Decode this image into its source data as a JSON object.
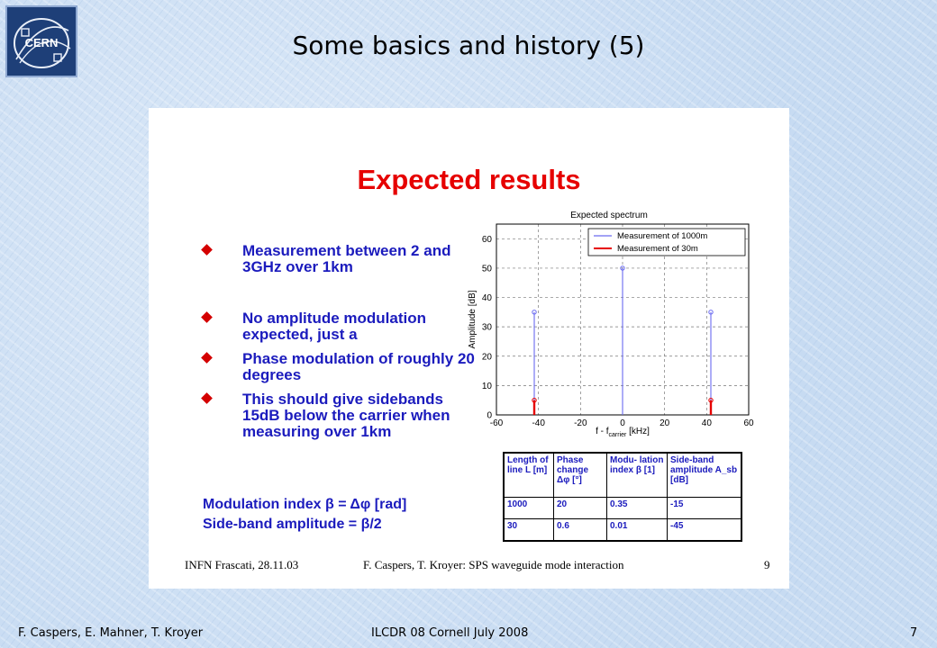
{
  "slide_title": "Some basics and history (5)",
  "logo_text": "CERN",
  "panel": {
    "heading": "Expected results",
    "bullets": [
      "Measurement between 2 and 3GHz over 1km",
      "No amplitude modulation expected, just a",
      "Phase modulation of roughly 20 degrees",
      "This should give sidebands 15dB below the carrier when measuring over 1km"
    ],
    "formula_modulation": "Modulation index β = Δφ [rad]",
    "formula_sideband": "Side-band amplitude = β/2",
    "footer_left": "INFN Frascati, 28.11.03",
    "footer_center": "F. Caspers, T. Kroyer: SPS waveguide mode interaction",
    "footer_page": "9"
  },
  "chart_data": {
    "type": "stem",
    "title": "Expected spectrum",
    "xlabel": "f - f",
    "xlabel_sub": "carrier",
    "xlabel_unit": " [kHz]",
    "ylabel": "Amplitude [dB]",
    "xlim": [
      -60,
      60
    ],
    "ylim": [
      0,
      65
    ],
    "xticks": [
      -60,
      -40,
      -20,
      0,
      20,
      40,
      60
    ],
    "yticks": [
      0,
      10,
      20,
      30,
      40,
      50,
      60
    ],
    "grid": true,
    "legend_position": "top-right",
    "series": [
      {
        "name": "Measurement of 1000m",
        "color": "#6a6af0",
        "points": [
          [
            -42,
            35
          ],
          [
            0,
            50
          ],
          [
            42,
            35
          ]
        ]
      },
      {
        "name": "Measurement of 30m",
        "color": "#e60000",
        "points": [
          [
            -42,
            5
          ],
          [
            42,
            5
          ]
        ]
      }
    ]
  },
  "table": {
    "headers": [
      "Length of line L [m]",
      "Phase change Δφ [°]",
      "Modu- lation index β [1]",
      "Side-band amplitude A_sb [dB]"
    ],
    "rows": [
      [
        "1000",
        "20",
        "0.35",
        "-15"
      ],
      [
        "30",
        "0.6",
        "0.01",
        "-45"
      ]
    ]
  },
  "footer": {
    "authors": "F. Caspers, E. Mahner, T. Kroyer",
    "event": "ILCDR 08 Cornell July 2008",
    "page": "7"
  }
}
